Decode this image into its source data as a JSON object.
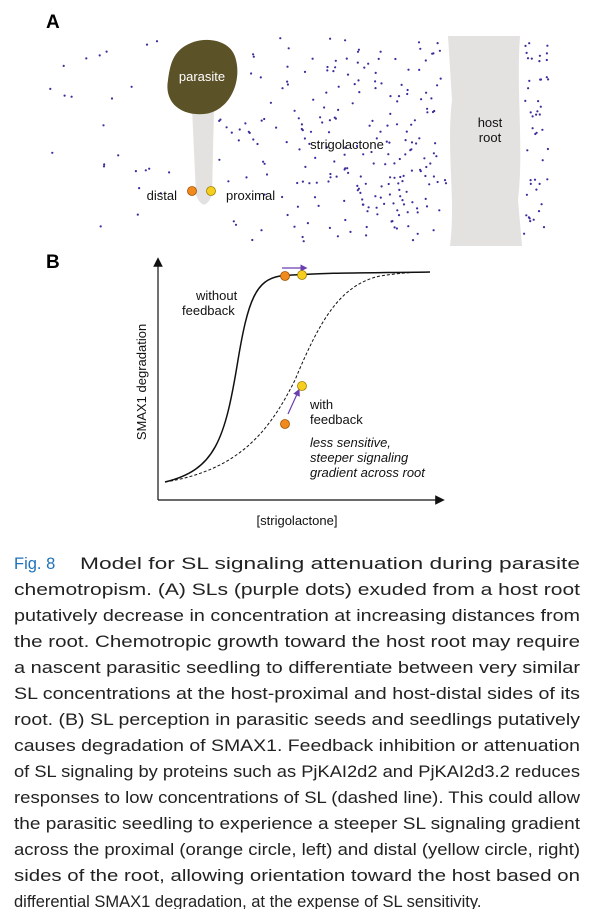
{
  "panel_a": {
    "label": "A",
    "parasite": "parasite",
    "host_root": [
      "host",
      "root"
    ],
    "strigolactone": "strigolactone",
    "distal": "distal",
    "proximal": "proximal"
  },
  "panel_b": {
    "label": "B",
    "y_axis_label": "SMAX1 degradation",
    "x_axis_label": "[strigolactone]",
    "without_feedback": [
      "without",
      "feedback"
    ],
    "with_feedback": [
      "with",
      "feedback"
    ],
    "note": [
      "less sensitive,",
      "steeper signaling",
      "gradient across root"
    ]
  },
  "caption": {
    "label": "Fig. 8",
    "lines": [
      "Model for SL signaling attenuation during parasite",
      "chemotropism. (A) SLs (purple dots) exuded from a host root",
      "putatively decrease in concentration at increasing distances from",
      "the root. Chemotropic growth toward the host root may require",
      "a nascent parasitic seedling to differentiate between very similar",
      "SL concentrations at the host-proximal and host-distal sides of its",
      "root. (B) SL perception in parasitic seeds and seedlings putatively",
      "causes degradation of SMAX1. Feedback inhibition or attenuation",
      "of SL signaling by proteins such as PjKAI2d2 and PjKAI2d3.2 reduces",
      "responses to low concentrations of SL (dashed line). This could allow",
      "the parasitic seedling to experience a steeper SL signaling gradient",
      "across the proximal (orange circle, left) and distal (yellow circle, right)",
      "sides of the root, allowing orientation toward the host based on",
      "differential SMAX1 degradation, at the expense of SL sensitivity."
    ]
  }
}
